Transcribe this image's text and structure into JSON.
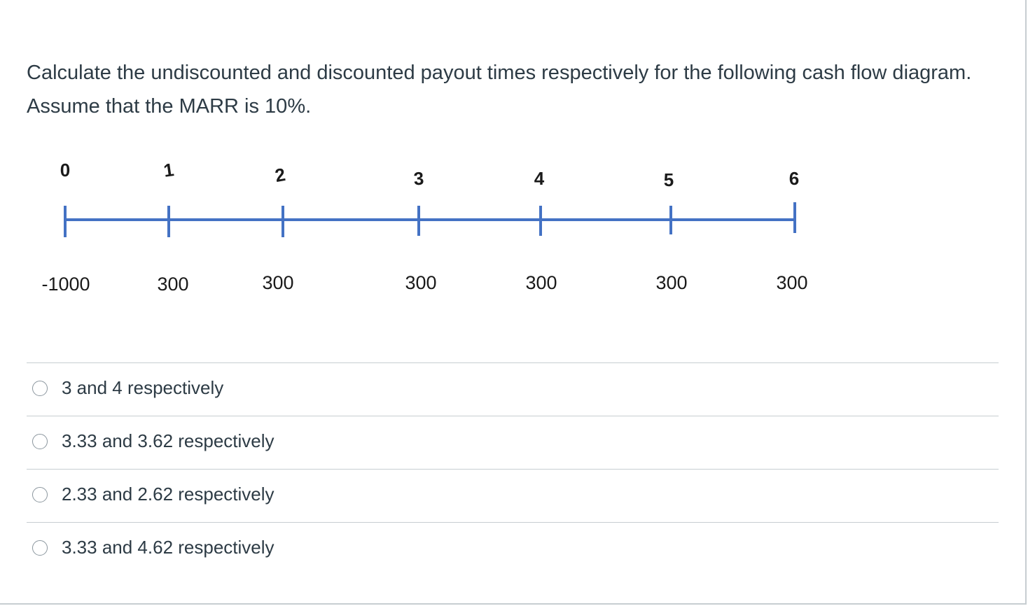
{
  "question": {
    "text": "Calculate the undiscounted and discounted payout times respectively for the following cash flow diagram. Assume that the MARR is 10%."
  },
  "cash_flow_diagram": {
    "periods": [
      "0",
      "1",
      "2",
      "3",
      "4",
      "5",
      "6"
    ],
    "cash_flows": [
      "-1000",
      "300",
      "300",
      "300",
      "300",
      "300",
      "300"
    ],
    "line_color": "#4472c4"
  },
  "answers": [
    {
      "label": "3 and 4 respectively"
    },
    {
      "label": "3.33 and 3.62 respectively"
    },
    {
      "label": "2.33 and 2.62 respectively"
    },
    {
      "label": "3.33 and 4.62 respectively"
    }
  ]
}
